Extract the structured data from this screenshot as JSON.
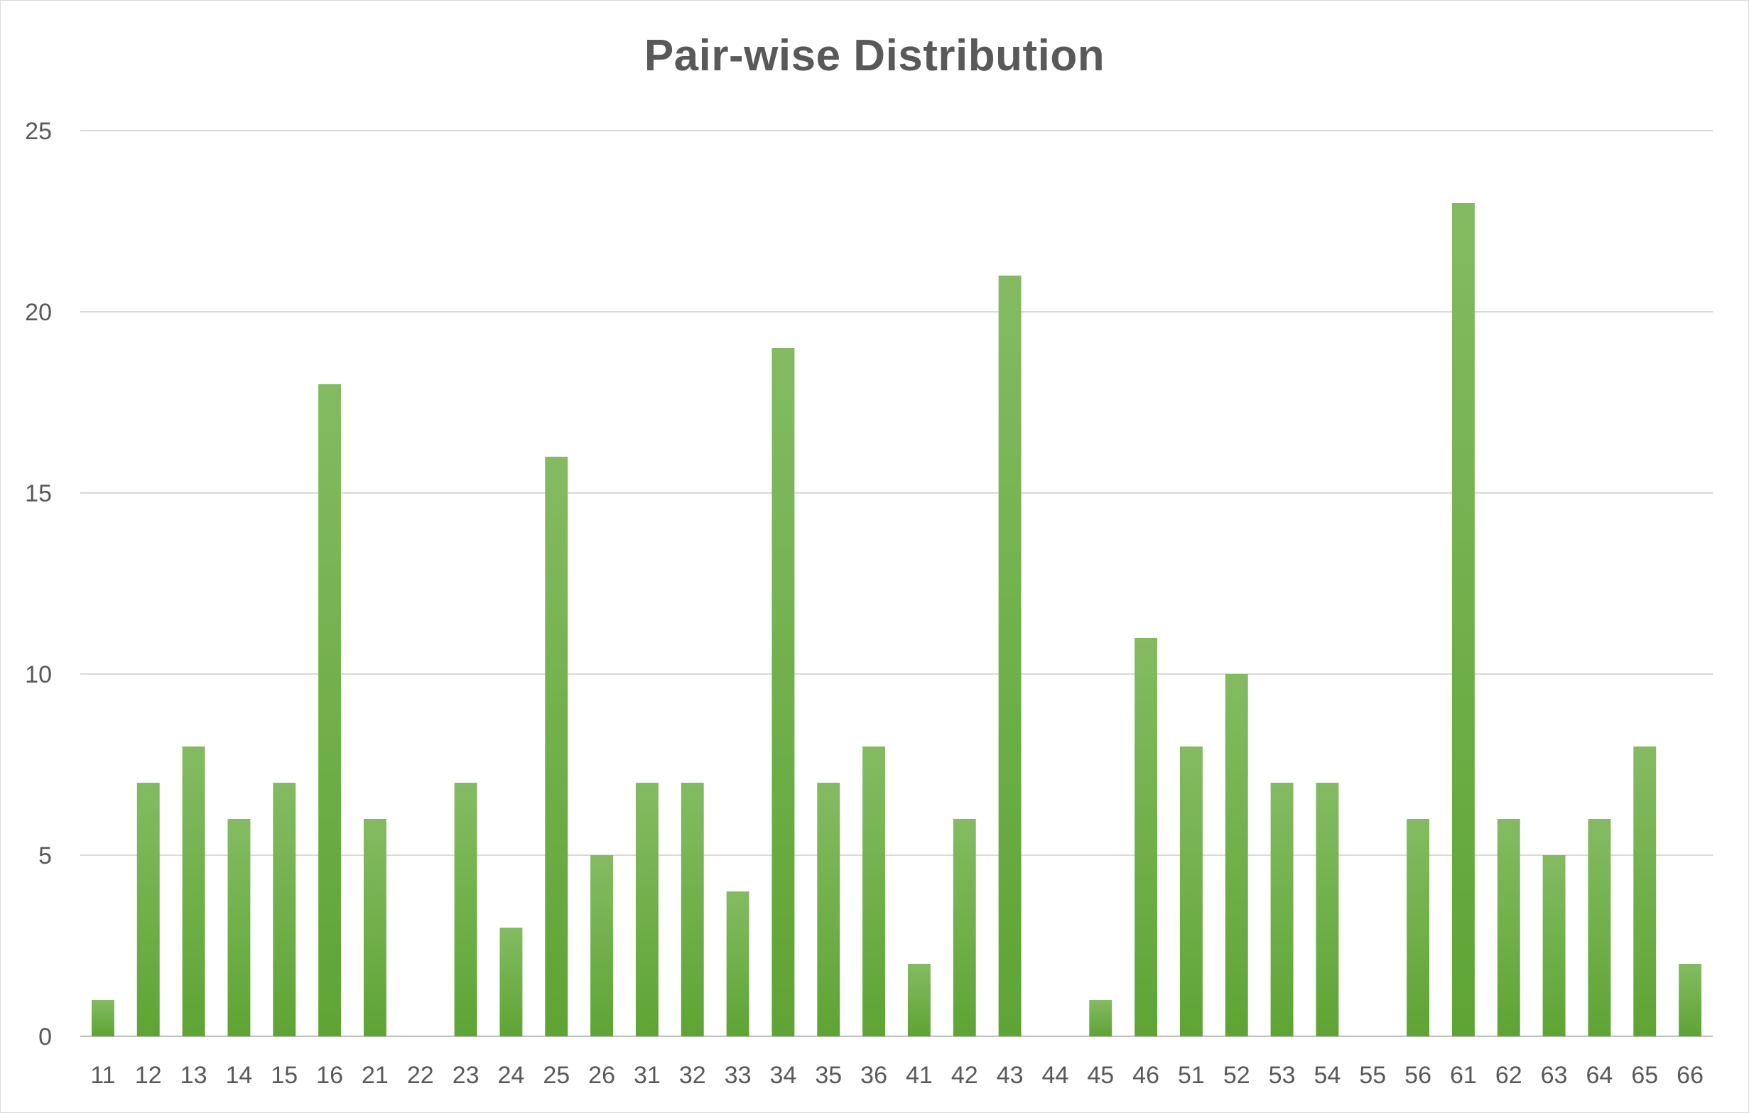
{
  "chart_data": {
    "type": "bar",
    "title": "Pair-wise Distribution",
    "xlabel": "",
    "ylabel": "",
    "categories": [
      "11",
      "12",
      "13",
      "14",
      "15",
      "16",
      "21",
      "22",
      "23",
      "24",
      "25",
      "26",
      "31",
      "32",
      "33",
      "34",
      "35",
      "36",
      "41",
      "42",
      "43",
      "44",
      "45",
      "46",
      "51",
      "52",
      "53",
      "54",
      "55",
      "56",
      "61",
      "62",
      "63",
      "64",
      "65",
      "66"
    ],
    "values": [
      1,
      7,
      8,
      6,
      7,
      18,
      6,
      0,
      7,
      3,
      16,
      5,
      7,
      7,
      4,
      19,
      7,
      8,
      2,
      6,
      21,
      0,
      1,
      11,
      8,
      10,
      7,
      7,
      0,
      6,
      23,
      6,
      5,
      6,
      8,
      2
    ],
    "ylim": [
      0,
      25
    ],
    "yticks": [
      0,
      5,
      10,
      15,
      20,
      25
    ],
    "grid": true,
    "legend": "none",
    "colors": {
      "bar_top": "#84bb62",
      "bar_bottom": "#5ea434",
      "grid": "#d9d9d9",
      "text": "#595959"
    }
  }
}
